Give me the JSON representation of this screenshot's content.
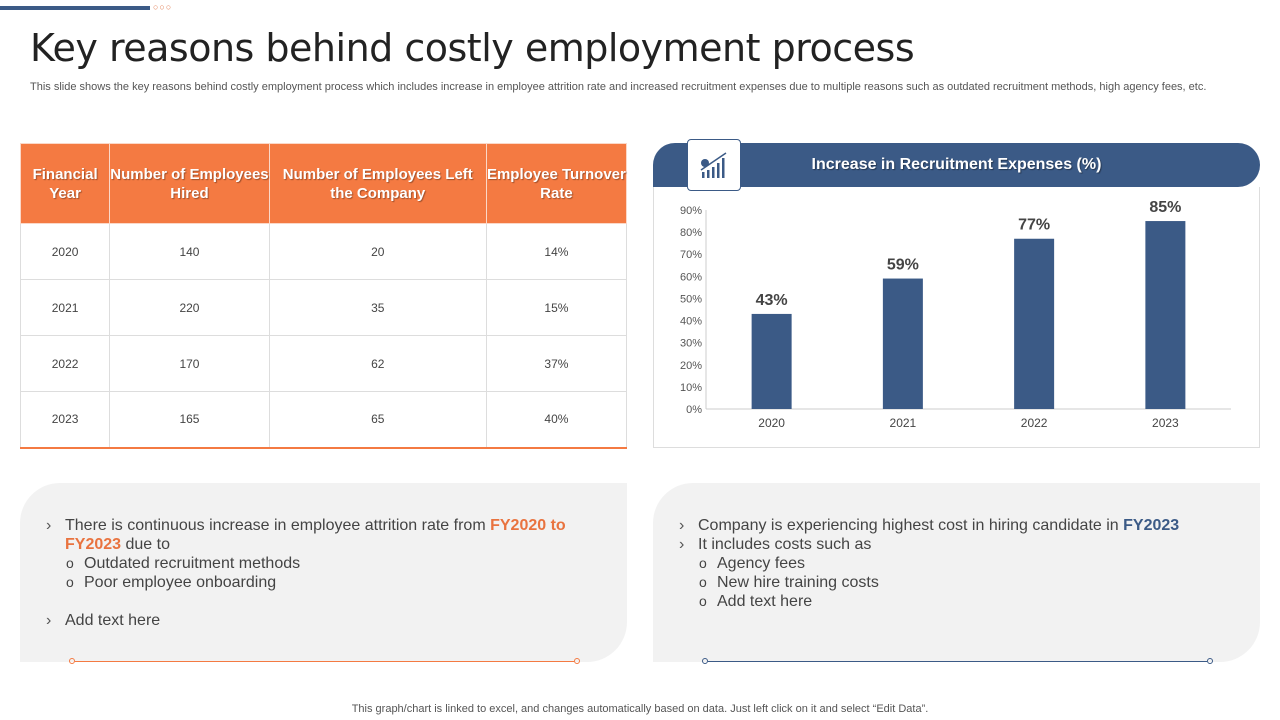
{
  "title": "Key reasons behind costly employment process",
  "subtitle": "This slide shows the key reasons behind costly employment process which includes increase in employee attrition rate and increased recruitment expenses due to multiple reasons such as outdated recruitment methods, high agency fees, etc.",
  "table": {
    "headers": [
      "Financial Year",
      "Number of Employees Hired",
      "Number of Employees Left the Company",
      "Employee Turnover Rate"
    ],
    "rows": [
      [
        "2020",
        "140",
        "20",
        "14%"
      ],
      [
        "2021",
        "220",
        "35",
        "15%"
      ],
      [
        "2022",
        "170",
        "62",
        "37%"
      ],
      [
        "2023",
        "165",
        "65",
        "40%"
      ]
    ]
  },
  "chart_data": {
    "type": "bar",
    "title": "Increase in Recruitment Expenses (%)",
    "categories": [
      "2020",
      "2021",
      "2022",
      "2023"
    ],
    "values": [
      43,
      59,
      77,
      85
    ],
    "data_labels": [
      "43%",
      "59%",
      "77%",
      "85%"
    ],
    "yticks": [
      "0%",
      "10%",
      "20%",
      "30%",
      "40%",
      "50%",
      "60%",
      "70%",
      "80%",
      "90%"
    ],
    "ylim": [
      0,
      90
    ],
    "grid": false,
    "bar_color": "#3b5a86",
    "icon": "chart-growth-icon"
  },
  "left_panel": {
    "b1_pre": "There is continuous  increase in employee attrition rate from ",
    "b1_hl": "FY2020 to FY2023",
    "b1_post": " due to",
    "s1": "Outdated recruitment methods",
    "s2": "Poor employee onboarding",
    "b2": "Add text here"
  },
  "right_panel": {
    "b1_pre": "Company is experiencing highest cost in hiring candidate in ",
    "b1_hl": "FY2023",
    "b2": "It includes costs such as",
    "s1": "Agency fees",
    "s2": "New hire training costs",
    "s3": "Add text here"
  },
  "footer": "This graph/chart is linked to excel,  and changes automatically based on data. Just left click on it and select “Edit Data”.",
  "colors": {
    "orange": "#f47a42",
    "blue": "#3b5a86"
  }
}
